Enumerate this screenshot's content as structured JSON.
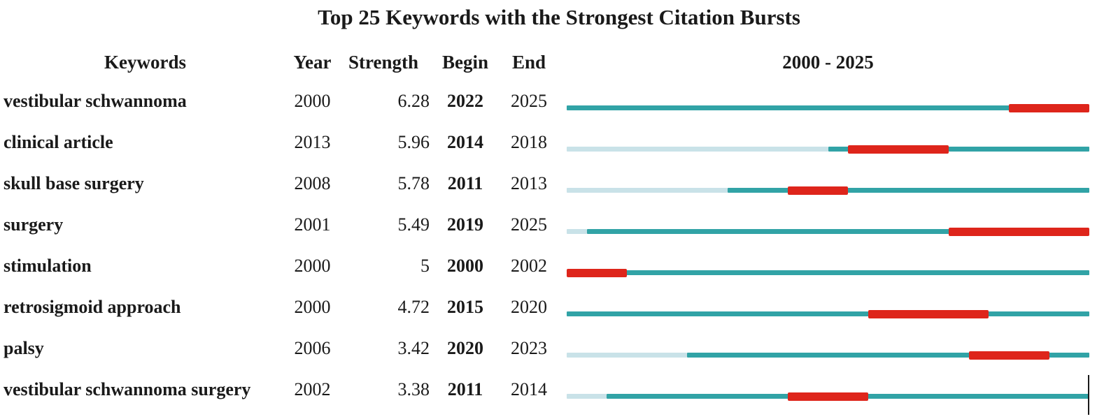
{
  "title": "Top 25 Keywords with the Strongest Citation Bursts",
  "columns": {
    "keywords": "Keywords",
    "year": "Year",
    "strength": "Strength",
    "begin": "Begin",
    "end": "End",
    "timeline": "2000 - 2025"
  },
  "chart_data": {
    "type": "table",
    "title": "Top 25 Keywords with the Strongest Citation Bursts",
    "axis": {
      "start": 2000,
      "end": 2025,
      "label": "2000 - 2025"
    },
    "colors": {
      "pre_appearance": "#C9E2E8",
      "active_period": "#31A3A6",
      "burst_period": "#DE251B"
    },
    "rows": [
      {
        "keyword": "vestibular schwannoma",
        "year": 2000,
        "strength": "6.28",
        "begin": 2022,
        "end": 2025
      },
      {
        "keyword": "clinical article",
        "year": 2013,
        "strength": "5.96",
        "begin": 2014,
        "end": 2018
      },
      {
        "keyword": "skull base surgery",
        "year": 2008,
        "strength": "5.78",
        "begin": 2011,
        "end": 2013
      },
      {
        "keyword": "surgery",
        "year": 2001,
        "strength": "5.49",
        "begin": 2019,
        "end": 2025
      },
      {
        "keyword": "stimulation",
        "year": 2000,
        "strength": "5",
        "begin": 2000,
        "end": 2002
      },
      {
        "keyword": "retrosigmoid approach",
        "year": 2000,
        "strength": "4.72",
        "begin": 2015,
        "end": 2020
      },
      {
        "keyword": "palsy",
        "year": 2006,
        "strength": "3.42",
        "begin": 2020,
        "end": 2023
      },
      {
        "keyword": "vestibular schwannoma surgery",
        "year": 2002,
        "strength": "3.38",
        "begin": 2011,
        "end": 2014
      }
    ]
  }
}
